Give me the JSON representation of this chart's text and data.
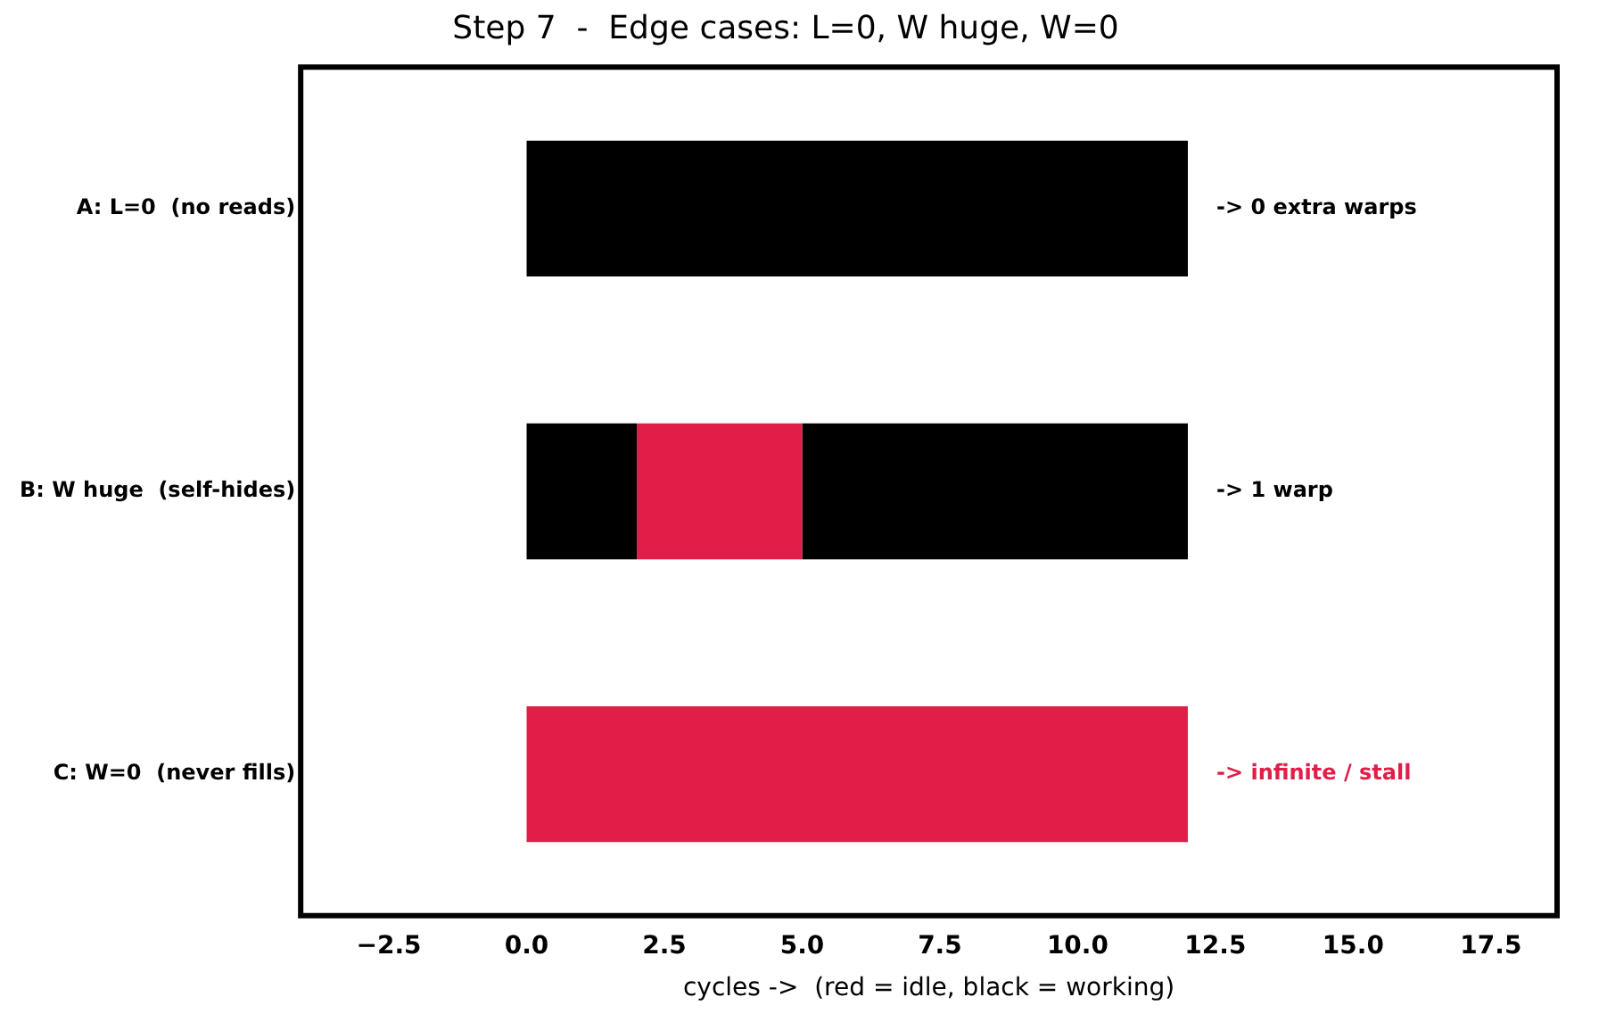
{
  "chart_data": {
    "type": "bar",
    "orientation": "horizontal",
    "title": "Step 7  -  Edge cases: L=0, W huge, W=0",
    "xlabel": "cycles ->  (red = idle, black = working)",
    "categories": [
      "A: L=0  (no reads)",
      "B: W huge  (self-hides)",
      "C: W=0  (never fills)"
    ],
    "series": [
      {
        "color": "#000000",
        "values": [
          12,
          2,
          null
        ],
        "base": [
          0,
          0,
          null
        ]
      },
      {
        "color": "#e01e48",
        "values": [
          null,
          3,
          12
        ],
        "base": [
          null,
          2,
          0
        ]
      },
      {
        "color": "#000000",
        "values": [
          null,
          7,
          null
        ],
        "base": [
          null,
          5,
          null
        ]
      }
    ],
    "annotations": [
      "-> 0 extra warps",
      "-> 1 warp",
      "-> infinite / stall"
    ],
    "xlim": [
      -4.1,
      18.7
    ],
    "xticks": [
      {
        "value": -2.5,
        "label": "−2.5"
      },
      {
        "value": 0,
        "label": "0.0"
      },
      {
        "value": 2.5,
        "label": "2.5"
      },
      {
        "value": 5,
        "label": "5.0"
      },
      {
        "value": 7.5,
        "label": "7.5"
      },
      {
        "value": 10,
        "label": "10.0"
      },
      {
        "value": 12.5,
        "label": "12.5"
      },
      {
        "value": 15,
        "label": "15.0"
      },
      {
        "value": 17.5,
        "label": "17.5"
      }
    ],
    "grid": false,
    "legend": false
  }
}
